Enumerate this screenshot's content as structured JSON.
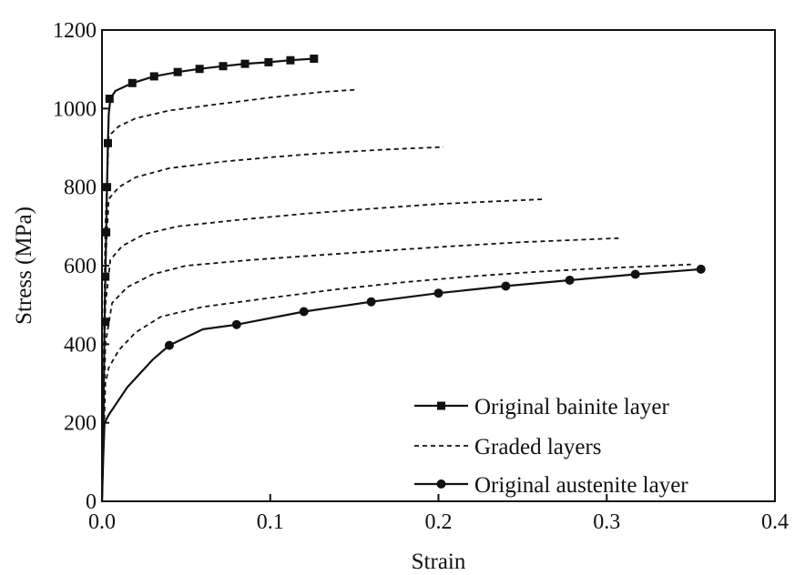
{
  "chart_data": {
    "type": "line",
    "title": "",
    "xlabel": "Strain",
    "ylabel": "Stress (MPa)",
    "xlim": [
      0,
      0.4
    ],
    "ylim": [
      0,
      1200
    ],
    "x_ticks": [
      "0.0",
      "0.1",
      "0.2",
      "0.3",
      "0.4"
    ],
    "y_ticks": [
      "0",
      "200",
      "400",
      "600",
      "800",
      "1000",
      "1200"
    ],
    "grid": false,
    "legend_position": "bottom-right",
    "legend": [
      {
        "label": "Original bainite layer",
        "style": "solid-square"
      },
      {
        "label": "Graded layers",
        "style": "dashed"
      },
      {
        "label": "Original austenite layer",
        "style": "solid-circle"
      }
    ],
    "series": [
      {
        "name": "Original bainite layer",
        "style": "solid",
        "marker": "square",
        "points": [
          [
            0,
            0
          ],
          [
            0.001,
            230
          ],
          [
            0.0015,
            457
          ],
          [
            0.002,
            572
          ],
          [
            0.0025,
            685
          ],
          [
            0.003,
            800
          ],
          [
            0.0035,
            912
          ],
          [
            0.004,
            985
          ],
          [
            0.005,
            1025
          ],
          [
            0.008,
            1045
          ],
          [
            0.018,
            1065
          ],
          [
            0.031,
            1082
          ],
          [
            0.045,
            1093
          ],
          [
            0.058,
            1101
          ],
          [
            0.072,
            1108
          ],
          [
            0.085,
            1114
          ],
          [
            0.099,
            1118
          ],
          [
            0.112,
            1123
          ],
          [
            0.126,
            1127
          ]
        ],
        "marker_points": [
          [
            0.002,
            457
          ],
          [
            0.002,
            572
          ],
          [
            0.0025,
            685
          ],
          [
            0.003,
            800
          ],
          [
            0.0035,
            912
          ],
          [
            0.0045,
            1025
          ],
          [
            0.018,
            1065
          ],
          [
            0.031,
            1082
          ],
          [
            0.045,
            1093
          ],
          [
            0.058,
            1101
          ],
          [
            0.072,
            1108
          ],
          [
            0.085,
            1114
          ],
          [
            0.099,
            1118
          ],
          [
            0.112,
            1123
          ],
          [
            0.126,
            1127
          ]
        ]
      },
      {
        "name": "Graded layers",
        "style": "dashed",
        "points": [
          [
            0,
            0
          ],
          [
            0.002,
            700
          ],
          [
            0.004,
            930
          ],
          [
            0.01,
            955
          ],
          [
            0.02,
            975
          ],
          [
            0.04,
            995
          ],
          [
            0.07,
            1012
          ],
          [
            0.1,
            1028
          ],
          [
            0.13,
            1042
          ],
          [
            0.151,
            1048
          ]
        ]
      },
      {
        "name": "Graded layers",
        "style": "dashed",
        "points": [
          [
            0,
            0
          ],
          [
            0.002,
            600
          ],
          [
            0.004,
            770
          ],
          [
            0.01,
            800
          ],
          [
            0.02,
            825
          ],
          [
            0.04,
            848
          ],
          [
            0.07,
            864
          ],
          [
            0.1,
            876
          ],
          [
            0.13,
            886
          ],
          [
            0.17,
            896
          ],
          [
            0.203,
            902
          ]
        ]
      },
      {
        "name": "Graded layers",
        "style": "dashed",
        "points": [
          [
            0,
            0
          ],
          [
            0.002,
            500
          ],
          [
            0.005,
            615
          ],
          [
            0.012,
            650
          ],
          [
            0.025,
            680
          ],
          [
            0.045,
            700
          ],
          [
            0.08,
            716
          ],
          [
            0.12,
            732
          ],
          [
            0.16,
            745
          ],
          [
            0.2,
            757
          ],
          [
            0.24,
            765
          ],
          [
            0.262,
            769
          ]
        ]
      },
      {
        "name": "Graded layers",
        "style": "dashed",
        "points": [
          [
            0,
            0
          ],
          [
            0.002,
            400
          ],
          [
            0.006,
            505
          ],
          [
            0.015,
            545
          ],
          [
            0.03,
            578
          ],
          [
            0.05,
            600
          ],
          [
            0.09,
            615
          ],
          [
            0.13,
            627
          ],
          [
            0.17,
            639
          ],
          [
            0.21,
            650
          ],
          [
            0.25,
            660
          ],
          [
            0.29,
            667
          ],
          [
            0.307,
            670
          ]
        ]
      },
      {
        "name": "Graded layers",
        "style": "dashed",
        "points": [
          [
            0,
            0
          ],
          [
            0.002,
            300
          ],
          [
            0.004,
            340
          ],
          [
            0.01,
            385
          ],
          [
            0.02,
            430
          ],
          [
            0.035,
            470
          ],
          [
            0.06,
            495
          ],
          [
            0.1,
            518
          ],
          [
            0.14,
            540
          ],
          [
            0.18,
            558
          ],
          [
            0.22,
            573
          ],
          [
            0.26,
            585
          ],
          [
            0.3,
            594
          ],
          [
            0.33,
            599
          ],
          [
            0.35,
            603
          ]
        ]
      },
      {
        "name": "Original austenite layer",
        "style": "solid",
        "marker": "circle",
        "points": [
          [
            0,
            0
          ],
          [
            0.0008,
            120
          ],
          [
            0.0015,
            200
          ],
          [
            0.004,
            220
          ],
          [
            0.015,
            290
          ],
          [
            0.03,
            360
          ],
          [
            0.04,
            397
          ],
          [
            0.06,
            438
          ],
          [
            0.08,
            450
          ],
          [
            0.12,
            483
          ],
          [
            0.16,
            508
          ],
          [
            0.2,
            530
          ],
          [
            0.24,
            548
          ],
          [
            0.278,
            563
          ],
          [
            0.317,
            578
          ],
          [
            0.356,
            591
          ]
        ],
        "marker_points": [
          [
            0.04,
            397
          ],
          [
            0.08,
            450
          ],
          [
            0.12,
            483
          ],
          [
            0.16,
            508
          ],
          [
            0.2,
            530
          ],
          [
            0.24,
            548
          ],
          [
            0.278,
            563
          ],
          [
            0.317,
            578
          ],
          [
            0.356,
            591
          ]
        ]
      }
    ]
  }
}
